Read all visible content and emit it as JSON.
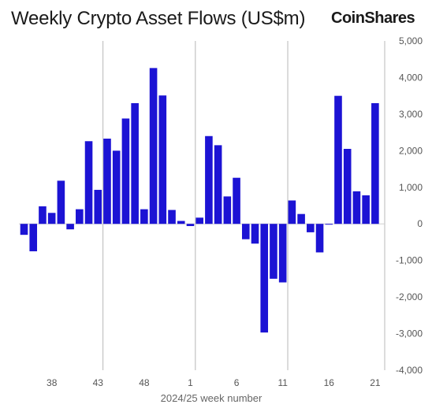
{
  "title": "Weekly Crypto Asset Flows (US$m)",
  "brand": "CoinShares",
  "colors": {
    "bar": "#1c13d4",
    "grid": "#b8b8b8",
    "axis_text": "#555555",
    "background": "#ffffff"
  },
  "chart_data": {
    "type": "bar",
    "title": "Weekly Crypto Asset Flows (US$m)",
    "xlabel": "2024/25 week number",
    "ylabel": "",
    "ylim": [
      -4000,
      5000
    ],
    "yticks": [
      5000,
      4000,
      3000,
      2000,
      1000,
      0,
      -1000,
      -2000,
      -3000,
      -4000
    ],
    "ytick_labels": [
      "5,000",
      "4,000",
      "3,000",
      "2,000",
      "1,000",
      "0",
      "-1,000",
      "-2,000",
      "-3,000",
      "-4,000"
    ],
    "y_axis_position": "right",
    "xtick_labels": [
      "38",
      "43",
      "48",
      "1",
      "6",
      "11",
      "16",
      "21"
    ],
    "grid": "vertical lines at weeks 43, 1 and 11",
    "categories": [
      "35",
      "36",
      "37",
      "38",
      "39",
      "40",
      "41",
      "42",
      "43",
      "44",
      "45",
      "46",
      "47",
      "48",
      "49",
      "50",
      "51",
      "52",
      "1",
      "2",
      "3",
      "4",
      "5",
      "6",
      "7",
      "8",
      "9",
      "10",
      "11",
      "12",
      "13",
      "14",
      "15",
      "16",
      "17",
      "18",
      "19",
      "20",
      "21"
    ],
    "values": [
      -300,
      -750,
      480,
      300,
      1180,
      -150,
      400,
      2260,
      930,
      2330,
      2000,
      2880,
      3300,
      400,
      4260,
      3510,
      380,
      80,
      -60,
      170,
      2400,
      2150,
      750,
      1260,
      -420,
      -540,
      -2970,
      -1500,
      -1600,
      640,
      270,
      -230,
      -780,
      0,
      3500,
      2050,
      890,
      780,
      3300
    ]
  }
}
